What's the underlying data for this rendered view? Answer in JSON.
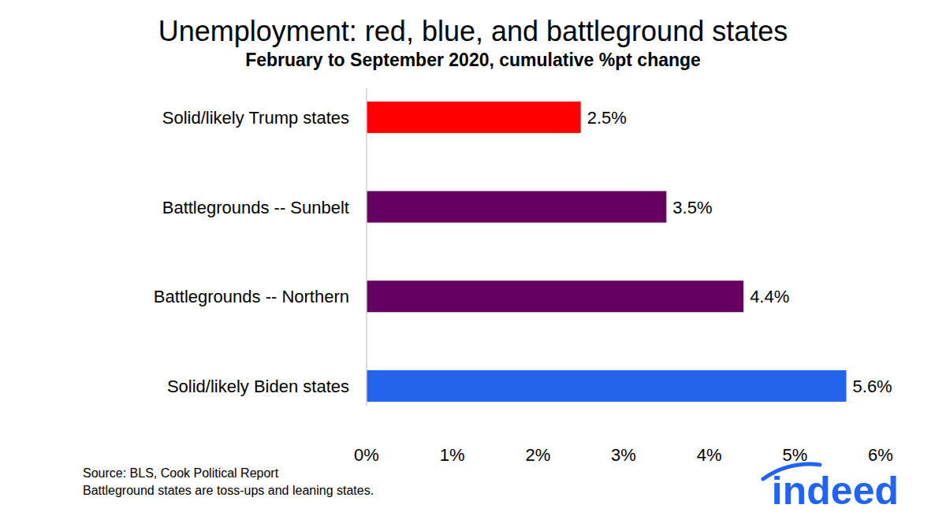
{
  "chart_data": {
    "type": "bar",
    "orientation": "horizontal",
    "title": "Unemployment: red, blue, and battleground states",
    "subtitle": "February to September 2020, cumulative %pt change",
    "categories": [
      "Solid/likely Trump states",
      "Battlegrounds -- Sunbelt",
      "Battlegrounds -- Northern",
      "Solid/likely Biden states"
    ],
    "values": [
      2.5,
      3.5,
      4.4,
      5.6
    ],
    "value_labels": [
      "2.5%",
      "3.5%",
      "4.4%",
      "5.6%"
    ],
    "colors": [
      "#ff0000",
      "#650060",
      "#650060",
      "#2464ec"
    ],
    "xlim": [
      0,
      6
    ],
    "xticks": [
      {
        "value": 0,
        "label": "0%"
      },
      {
        "value": 1,
        "label": "1%"
      },
      {
        "value": 2,
        "label": "2%"
      },
      {
        "value": 3,
        "label": "3%"
      },
      {
        "value": 4,
        "label": "4%"
      },
      {
        "value": 5,
        "label": "5%"
      },
      {
        "value": 6,
        "label": "6%"
      }
    ],
    "grid": false,
    "data_labels": true,
    "notes": [
      "Source: BLS, Cook Political Report",
      "Battleground states are toss-ups and leaning states."
    ],
    "logo": "indeed"
  }
}
